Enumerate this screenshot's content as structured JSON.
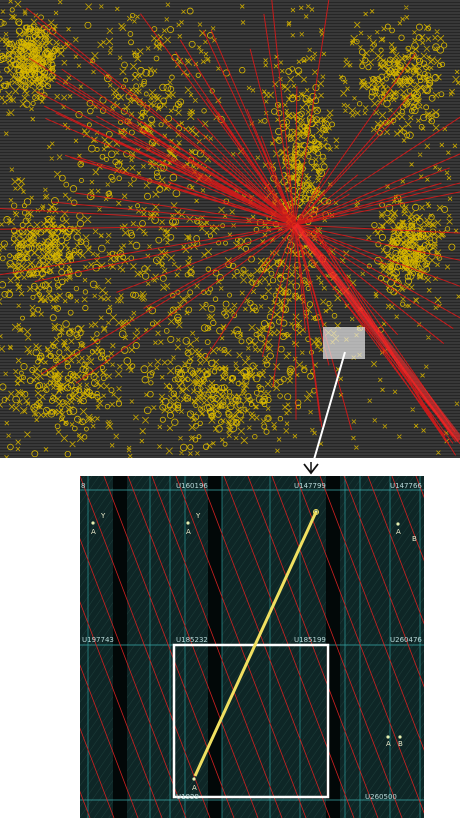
{
  "detail": {
    "cells": [
      "8",
      "U160196",
      "U147799",
      "U147766",
      "U197743",
      "U185232",
      "U185199",
      "U260476",
      "U1939",
      "U260500"
    ],
    "pins": [
      "Y",
      "A",
      "Y",
      "A",
      "A",
      "B",
      "A",
      "B",
      "A"
    ]
  }
}
